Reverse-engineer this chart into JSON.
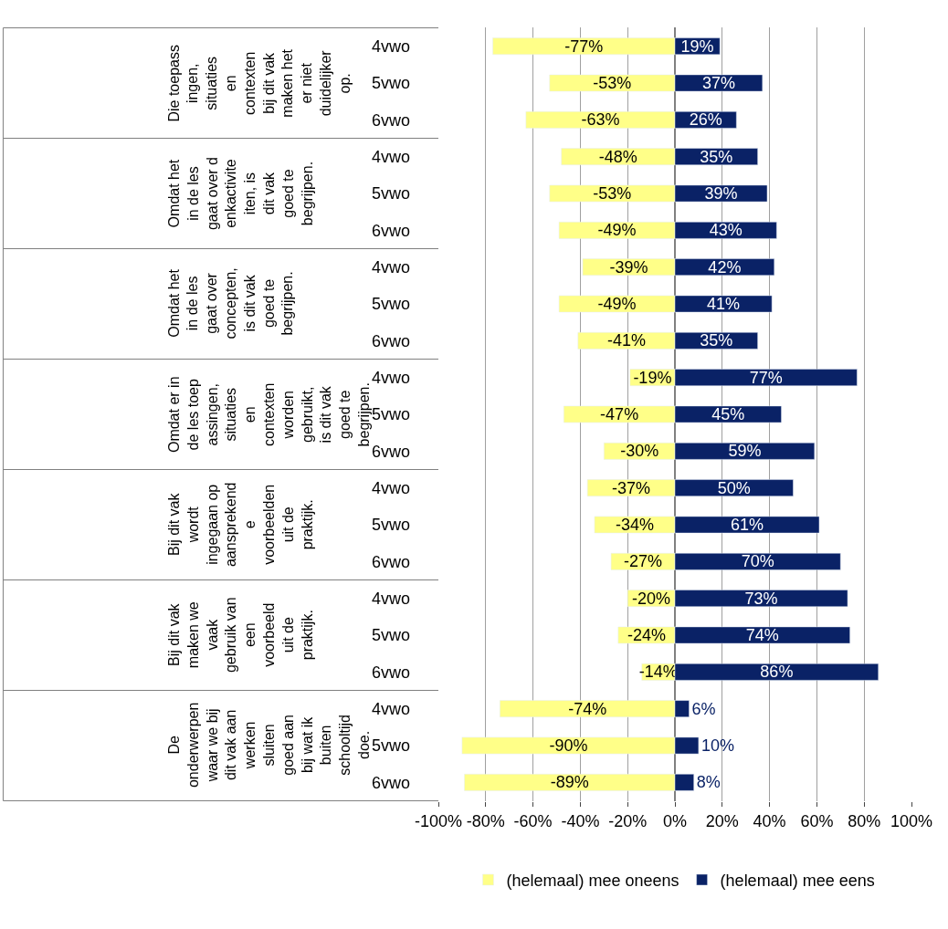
{
  "chart_data": {
    "type": "bar",
    "orientation": "horizontal",
    "stacked": true,
    "categories": [
      "4vwo",
      "5vwo",
      "6vwo",
      "4vwo",
      "5vwo",
      "6vwo",
      "4vwo",
      "5vwo",
      "6vwo",
      "4vwo",
      "5vwo",
      "6vwo",
      "4vwo",
      "5vwo",
      "6vwo",
      "4vwo",
      "5vwo",
      "6vwo",
      "4vwo",
      "5vwo",
      "6vwo"
    ],
    "series": [
      {
        "name": "(helemaal) mee oneens",
        "color": "#ffff88",
        "values": [
          -77,
          -53,
          -63,
          -48,
          -53,
          -49,
          -39,
          -49,
          -41,
          -19,
          -47,
          -30,
          -37,
          -34,
          -27,
          -20,
          -24,
          -14,
          -74,
          -90,
          -89
        ],
        "value_labels": [
          "-77%",
          "-53%",
          "-63%",
          "-48%",
          "-53%",
          "-49%",
          "-39%",
          "-49%",
          "-41%",
          "-19%",
          "-47%",
          "-30%",
          "-37%",
          "-34%",
          "-27%",
          "-20%",
          "-24%",
          "-14%",
          "-74%",
          "-90%",
          "-89%"
        ]
      },
      {
        "name": "(helemaal) mee eens",
        "color": "#0a2266",
        "values": [
          19,
          37,
          26,
          35,
          39,
          43,
          42,
          41,
          35,
          77,
          45,
          59,
          50,
          61,
          70,
          73,
          74,
          86,
          6,
          10,
          8
        ],
        "value_labels": [
          "19%",
          "37%",
          "26%",
          "35%",
          "39%",
          "43%",
          "42%",
          "41%",
          "35%",
          "77%",
          "45%",
          "59%",
          "50%",
          "61%",
          "70%",
          "73%",
          "74%",
          "86%",
          "6%",
          "10%",
          "8%"
        ]
      }
    ],
    "annotations": [
      "Die toepassingen, situaties en contexten bij dit vak maken het er niet duidelijker op.",
      "Omdat het in de les gaat over denkactiviteiten, is dit vak goed te begrijpen.",
      "Omdat het in de les gaat over concepten, is dit vak goed te begrijpen.",
      "Omdat er in de les toepassingen, situaties en contexten worden gebruikt, is dit vak goed te begrijpen.",
      "Bij dit vak wordt ingegaan op aansprekende voorbeelden uit de praktijk.",
      "Bij dit vak maken we vaak gebruik van een voorbeeld uit de praktijk.",
      "De onderwerpen waar we bij dit vak aan werken sluiten goed aan bij wat ik buiten schooltijd doe."
    ],
    "xlim": [
      -100,
      100
    ],
    "xticks": [
      {
        "value": -100,
        "label": "-100%"
      },
      {
        "value": -80,
        "label": "-80%"
      },
      {
        "value": -60,
        "label": "-60%"
      },
      {
        "value": -40,
        "label": "-40%"
      },
      {
        "value": -20,
        "label": "-20%"
      },
      {
        "value": 0,
        "label": "0%"
      },
      {
        "value": 20,
        "label": "20%"
      },
      {
        "value": 40,
        "label": "40%"
      },
      {
        "value": 60,
        "label": "60%"
      },
      {
        "value": 80,
        "label": "80%"
      },
      {
        "value": 100,
        "label": "100%"
      }
    ],
    "grid": "x",
    "legend": "bottom"
  }
}
